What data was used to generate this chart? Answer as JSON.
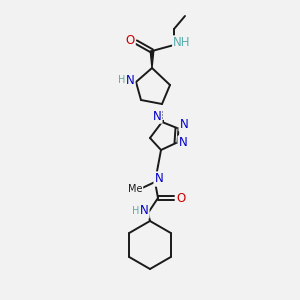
{
  "bg": "#f2f2f2",
  "bond_color": "#1a1a1a",
  "bond_width": 1.4,
  "atom_colors": {
    "N": "#0000cc",
    "O": "#cc0000",
    "C": "#1a1a1a",
    "H": "#5aacac"
  },
  "fs": 8.5,
  "fss": 7.0
}
